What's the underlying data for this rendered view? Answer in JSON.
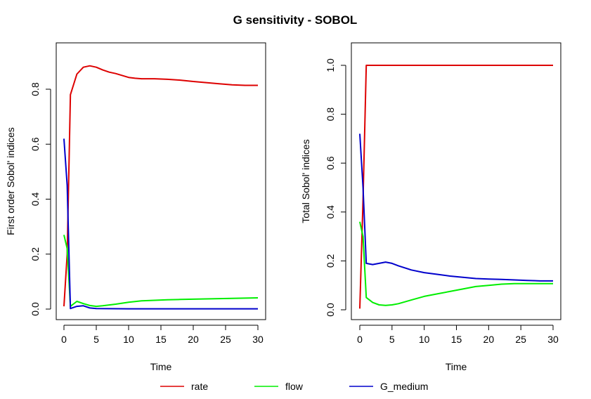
{
  "figure": {
    "title": "G sensitivity - SOBOL"
  },
  "legend": {
    "placement": "bottom",
    "items": [
      {
        "label": "rate",
        "color": "#dd0000"
      },
      {
        "label": "flow",
        "color": "#00ee00"
      },
      {
        "label": "G_medium",
        "color": "#0000cc"
      }
    ]
  },
  "chart_data": [
    {
      "type": "line",
      "xlabel": "Time",
      "ylabel": "First order Sobol' indices",
      "xlim": [
        0,
        30
      ],
      "ylim": [
        0,
        0.9
      ],
      "xticks": [
        0,
        5,
        10,
        15,
        20,
        25,
        30
      ],
      "yticks": [
        0.0,
        0.2,
        0.4,
        0.6,
        0.8
      ],
      "ytick_labels": [
        "0.0",
        "0.2",
        "0.4",
        "0.6",
        "0.8"
      ],
      "grid": false,
      "series": [
        {
          "name": "rate",
          "color": "#dd0000",
          "x": [
            0,
            0.5,
            1,
            2,
            3,
            4,
            5,
            6,
            7,
            8,
            9,
            10,
            11,
            12,
            14,
            16,
            18,
            20,
            22,
            24,
            26,
            28,
            30
          ],
          "y": [
            0.01,
            0.2,
            0.78,
            0.855,
            0.88,
            0.885,
            0.88,
            0.87,
            0.862,
            0.857,
            0.85,
            0.843,
            0.84,
            0.838,
            0.838,
            0.836,
            0.833,
            0.828,
            0.824,
            0.82,
            0.816,
            0.814,
            0.814
          ]
        },
        {
          "name": "flow",
          "color": "#00ee00",
          "x": [
            0,
            0.5,
            1,
            2,
            3,
            4,
            5,
            6,
            8,
            10,
            12,
            14,
            16,
            18,
            20,
            22,
            24,
            26,
            28,
            30
          ],
          "y": [
            0.27,
            0.22,
            0.01,
            0.028,
            0.02,
            0.013,
            0.01,
            0.012,
            0.018,
            0.025,
            0.03,
            0.032,
            0.034,
            0.035,
            0.036,
            0.037,
            0.038,
            0.039,
            0.04,
            0.041
          ]
        },
        {
          "name": "G_medium",
          "color": "#0000cc",
          "x": [
            0,
            0.5,
            1,
            2,
            3,
            4,
            5,
            10,
            15,
            20,
            25,
            30
          ],
          "y": [
            0.62,
            0.45,
            0.002,
            0.01,
            0.012,
            0.004,
            0.002,
            0.001,
            0.001,
            0.001,
            0.001,
            0.001
          ]
        }
      ]
    },
    {
      "type": "line",
      "xlabel": "Time",
      "ylabel": "Total Sobol' indices",
      "xlim": [
        0,
        30
      ],
      "ylim": [
        0,
        1.0
      ],
      "xticks": [
        0,
        5,
        10,
        15,
        20,
        25,
        30
      ],
      "yticks": [
        0.0,
        0.2,
        0.4,
        0.6,
        0.8,
        1.0
      ],
      "ytick_labels": [
        "0.0",
        "0.2",
        "0.4",
        "0.6",
        "0.8",
        "1.0"
      ],
      "grid": false,
      "series": [
        {
          "name": "rate",
          "color": "#dd0000",
          "x": [
            0,
            0.5,
            1,
            2,
            5,
            10,
            15,
            20,
            25,
            30
          ],
          "y": [
            0.005,
            0.45,
            1.0,
            1.0,
            1.0,
            1.0,
            1.0,
            1.0,
            1.0,
            1.0
          ]
        },
        {
          "name": "flow",
          "color": "#00ee00",
          "x": [
            0,
            0.5,
            1,
            1.5,
            2,
            3,
            4,
            5,
            6,
            8,
            10,
            12,
            14,
            16,
            18,
            20,
            22,
            24,
            26,
            28,
            30
          ],
          "y": [
            0.36,
            0.3,
            0.05,
            0.04,
            0.03,
            0.02,
            0.018,
            0.02,
            0.025,
            0.04,
            0.055,
            0.065,
            0.075,
            0.085,
            0.095,
            0.1,
            0.105,
            0.107,
            0.107,
            0.107,
            0.107
          ]
        },
        {
          "name": "G_medium",
          "color": "#0000cc",
          "x": [
            0,
            0.5,
            1,
            2,
            3,
            4,
            5,
            6,
            8,
            10,
            12,
            14,
            16,
            18,
            20,
            22,
            24,
            26,
            28,
            30
          ],
          "y": [
            0.72,
            0.5,
            0.19,
            0.185,
            0.19,
            0.195,
            0.19,
            0.18,
            0.163,
            0.152,
            0.145,
            0.138,
            0.133,
            0.128,
            0.126,
            0.124,
            0.122,
            0.12,
            0.118,
            0.118
          ]
        }
      ]
    }
  ]
}
